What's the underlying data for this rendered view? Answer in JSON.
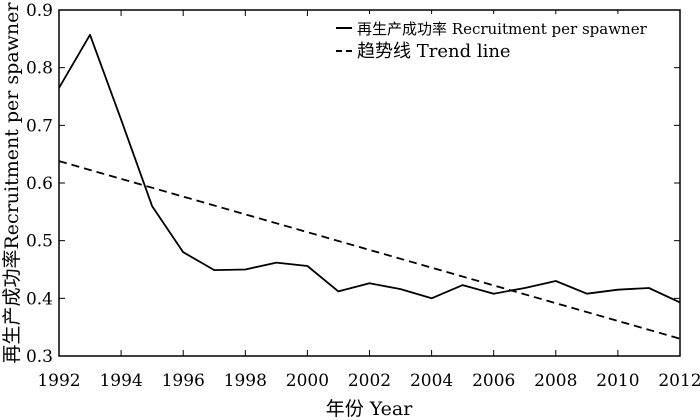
{
  "chart_data": {
    "type": "line",
    "xlabel": "年份 Year",
    "ylabel": "再生产成功率Recruitment per spawner",
    "xlim": [
      1992,
      2012
    ],
    "ylim": [
      0.3,
      0.9
    ],
    "x_ticks": [
      "1992",
      "1994",
      "1996",
      "1998",
      "2000",
      "2002",
      "2004",
      "2006",
      "2008",
      "2010",
      "2012"
    ],
    "y_ticks": [
      "0.3",
      "0.4",
      "0.5",
      "0.6",
      "0.7",
      "0.8",
      "0.9"
    ],
    "grid": false,
    "legend_position": "top-right",
    "legend": [
      "再生产成功率 Recruitment per spawner",
      "趋势线 Trend line"
    ],
    "series": [
      {
        "name": "再生产成功率 Recruitment per spawner",
        "style": "solid",
        "color": "#000000",
        "x": [
          1992,
          1993,
          1994,
          1995,
          1996,
          1997,
          1998,
          1999,
          2000,
          2001,
          2002,
          2003,
          2004,
          2005,
          2006,
          2007,
          2008,
          2009,
          2010,
          2011,
          2012
        ],
        "y": [
          0.765,
          0.857,
          0.71,
          0.56,
          0.48,
          0.449,
          0.45,
          0.462,
          0.456,
          0.412,
          0.426,
          0.416,
          0.4,
          0.423,
          0.408,
          0.418,
          0.43,
          0.408,
          0.415,
          0.418,
          0.393
        ]
      },
      {
        "name": "趋势线 Trend line",
        "style": "dashed",
        "color": "#000000",
        "x": [
          1992,
          2012
        ],
        "y": [
          0.638,
          0.33
        ]
      }
    ]
  }
}
